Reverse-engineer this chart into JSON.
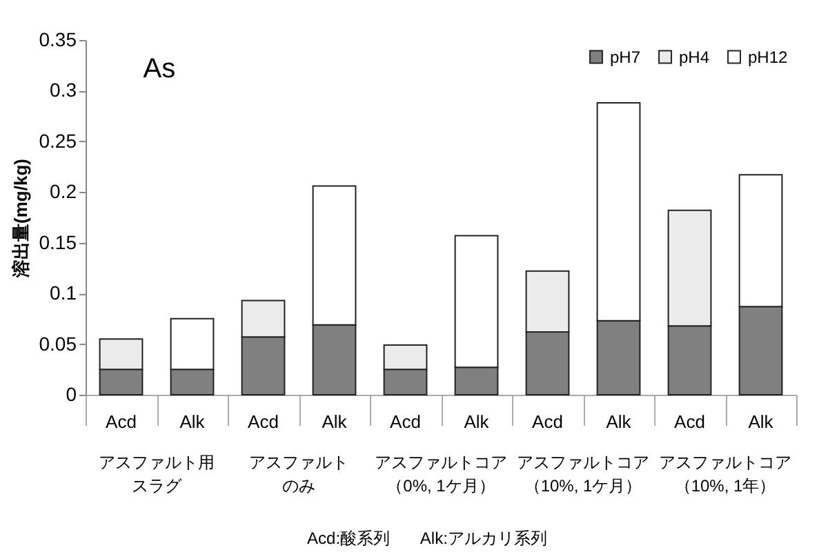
{
  "chart_data": {
    "type": "bar",
    "title": "As",
    "ylabel": "溶出量(mg/kg)",
    "categories": [
      "Acd",
      "Alk",
      "Acd",
      "Alk",
      "Acd",
      "Alk",
      "Acd",
      "Alk",
      "Acd",
      "Alk"
    ],
    "series": [
      {
        "name": "pH7",
        "color": "#808080",
        "values": [
          0.025,
          0.025,
          0.057,
          0.069,
          0.025,
          0.027,
          0.062,
          0.073,
          0.068,
          0.087
        ]
      },
      {
        "name": "pH4",
        "color": "#ebebeb",
        "values": [
          0.03,
          null,
          0.036,
          null,
          0.024,
          null,
          0.06,
          null,
          0.114,
          null
        ]
      },
      {
        "name": "pH12",
        "color": "#ffffff",
        "values": [
          null,
          0.05,
          null,
          0.137,
          null,
          0.13,
          null,
          0.215,
          null,
          0.13
        ]
      }
    ],
    "stacked": true,
    "ylim": [
      0,
      0.35
    ],
    "yticks": [
      0,
      0.05,
      0.1,
      0.15,
      0.2,
      0.25,
      0.3,
      0.35
    ],
    "grid": false,
    "legend": "top right",
    "annotations": [
      "アスファルト用",
      "スラグ",
      "アスファルト",
      "のみ",
      "アスファルトコア",
      "（0%, 1ケ月）",
      "アスファルトコア",
      "（10%, 1ケ月）",
      "アスファルトコア",
      "（10%, 1年）",
      "Acd:酸系列",
      "Alk:アルカリ系列"
    ]
  }
}
